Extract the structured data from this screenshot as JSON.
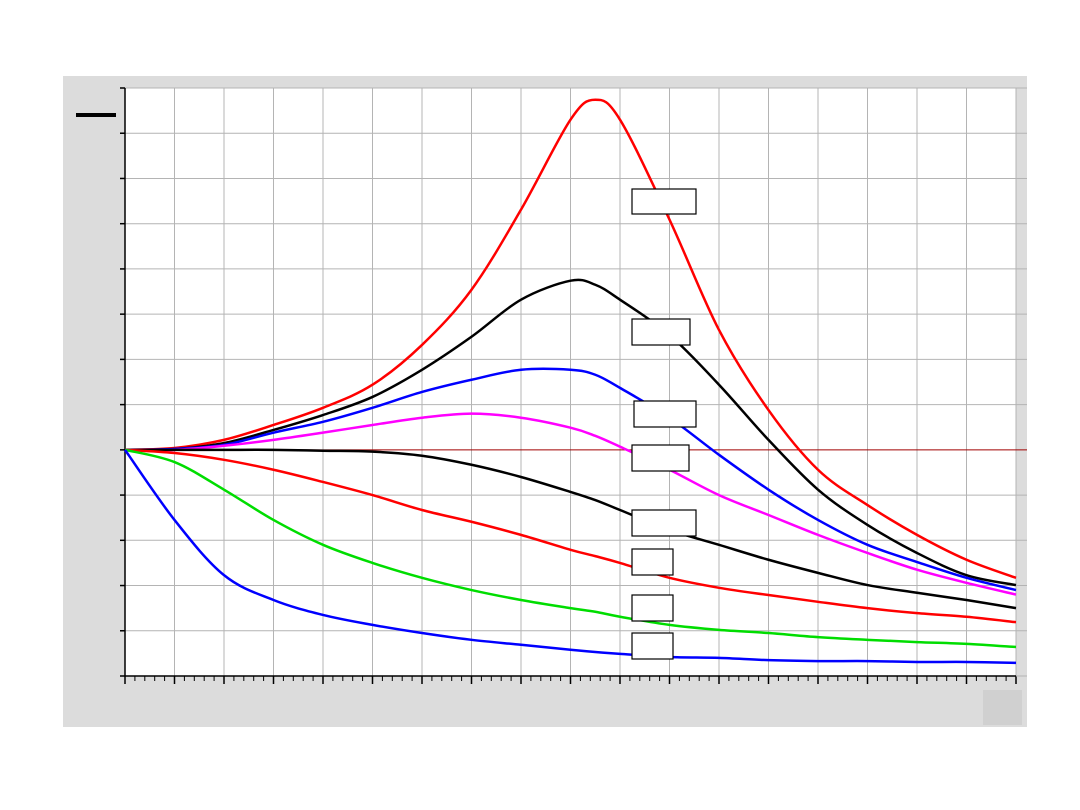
{
  "chart_data": {
    "type": "line",
    "x": [
      0,
      1,
      2,
      3,
      4,
      5,
      6,
      7,
      8,
      9,
      9.5,
      10,
      11,
      12,
      13,
      14,
      15,
      16,
      17,
      18
    ],
    "xlim": [
      0,
      18
    ],
    "xticks": [
      0,
      1,
      2,
      3,
      4,
      5,
      6,
      7,
      8,
      9,
      10,
      11,
      12,
      13,
      14,
      15,
      16,
      17,
      18
    ],
    "ylim": [
      -5,
      8
    ],
    "yticks": [
      -5,
      -4,
      -3,
      -2,
      -1,
      0,
      1,
      2,
      3,
      4,
      5,
      6,
      7,
      8
    ],
    "grid": true,
    "series": [
      {
        "color": "#ff0000",
        "values": [
          0,
          0.04,
          0.22,
          0.55,
          0.93,
          1.44,
          2.32,
          3.54,
          5.31,
          7.3,
          7.74,
          7.3,
          5.09,
          2.65,
          0.88,
          -0.44,
          -1.22,
          -1.88,
          -2.43,
          -2.83
        ]
      },
      {
        "color": "#000000",
        "values": [
          0,
          0.02,
          0.15,
          0.44,
          0.77,
          1.17,
          1.77,
          2.5,
          3.32,
          3.74,
          3.65,
          3.32,
          2.54,
          1.44,
          0.22,
          -0.88,
          -1.66,
          -2.28,
          -2.77,
          -2.99
        ]
      },
      {
        "color": "#0000ff",
        "values": [
          0,
          0.02,
          0.11,
          0.38,
          0.62,
          0.93,
          1.28,
          1.55,
          1.77,
          1.77,
          1.66,
          1.37,
          0.71,
          -0.11,
          -0.88,
          -1.55,
          -2.1,
          -2.48,
          -2.83,
          -3.1
        ]
      },
      {
        "color": "#ff00ff",
        "values": [
          0,
          0,
          0.09,
          0.22,
          0.38,
          0.55,
          0.71,
          0.8,
          0.71,
          0.49,
          0.31,
          0.07,
          -0.44,
          -1.0,
          -1.44,
          -1.88,
          -2.28,
          -2.65,
          -2.94,
          -3.2
        ]
      },
      {
        "color": "#000000",
        "values": [
          0,
          0,
          0,
          0,
          -0.02,
          -0.04,
          -0.13,
          -0.33,
          -0.6,
          -0.93,
          -1.11,
          -1.33,
          -1.77,
          -2.1,
          -2.43,
          -2.72,
          -2.99,
          -3.16,
          -3.32,
          -3.5
        ]
      },
      {
        "color": "#ff0000",
        "values": [
          0,
          -0.07,
          -0.22,
          -0.44,
          -0.71,
          -1.0,
          -1.33,
          -1.59,
          -1.88,
          -2.21,
          -2.35,
          -2.5,
          -2.83,
          -3.05,
          -3.21,
          -3.36,
          -3.5,
          -3.61,
          -3.69,
          -3.81
        ]
      },
      {
        "color": "#00dd00",
        "values": [
          0,
          -0.27,
          -0.88,
          -1.55,
          -2.1,
          -2.5,
          -2.83,
          -3.1,
          -3.32,
          -3.5,
          -3.58,
          -3.69,
          -3.87,
          -3.98,
          -4.05,
          -4.14,
          -4.2,
          -4.25,
          -4.29,
          -4.36
        ]
      },
      {
        "color": "#0000ff",
        "values": [
          0,
          -1.55,
          -2.77,
          -3.32,
          -3.65,
          -3.87,
          -4.05,
          -4.2,
          -4.31,
          -4.42,
          -4.47,
          -4.51,
          -4.58,
          -4.6,
          -4.65,
          -4.67,
          -4.67,
          -4.69,
          -4.69,
          -4.71
        ]
      }
    ]
  }
}
